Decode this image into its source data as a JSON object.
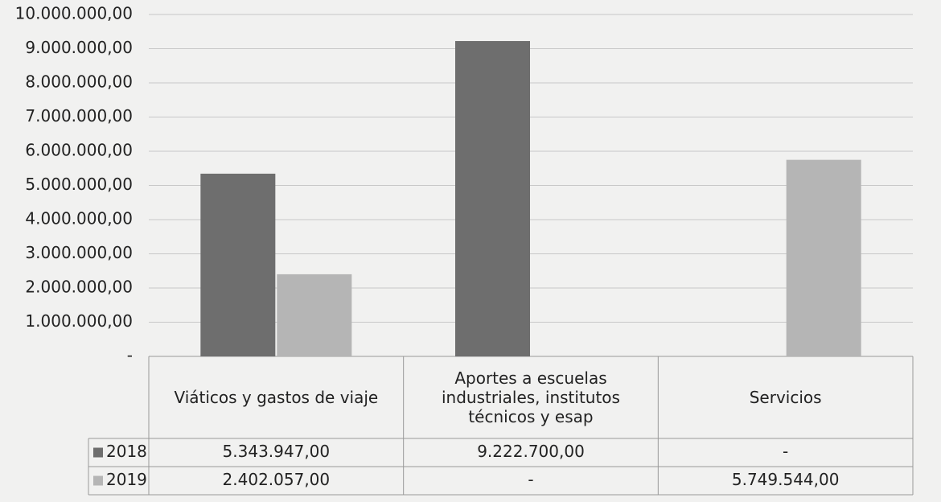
{
  "chart_data": {
    "type": "bar",
    "categories": [
      "Viáticos y gastos de viaje",
      "Aportes a escuelas industriales, institutos técnicos y esap",
      "Servicios"
    ],
    "series": [
      {
        "name": "2018",
        "color": "#6e6e6e",
        "values": [
          5343947,
          9222700,
          null
        ],
        "value_labels": [
          "5.343.947,00",
          "9.222.700,00",
          "-"
        ]
      },
      {
        "name": "2019",
        "color": "#b5b5b5",
        "values": [
          2402057,
          null,
          5749544
        ],
        "value_labels": [
          "2.402.057,00",
          "-",
          "5.749.544,00"
        ]
      }
    ],
    "ylim": [
      0,
      10000000
    ],
    "yticks": [
      {
        "value": 0,
        "label": "-"
      },
      {
        "value": 1000000,
        "label": "1.000.000,00"
      },
      {
        "value": 2000000,
        "label": "2.000.000,00"
      },
      {
        "value": 3000000,
        "label": "3.000.000,00"
      },
      {
        "value": 4000000,
        "label": "4.000.000,00"
      },
      {
        "value": 5000000,
        "label": "5.000.000,00"
      },
      {
        "value": 6000000,
        "label": "6.000.000,00"
      },
      {
        "value": 7000000,
        "label": "7.000.000,00"
      },
      {
        "value": 8000000,
        "label": "8.000.000,00"
      },
      {
        "value": 9000000,
        "label": "9.000.000,00"
      },
      {
        "value": 10000000,
        "label": "10.000.000,00"
      }
    ],
    "grid": true
  }
}
